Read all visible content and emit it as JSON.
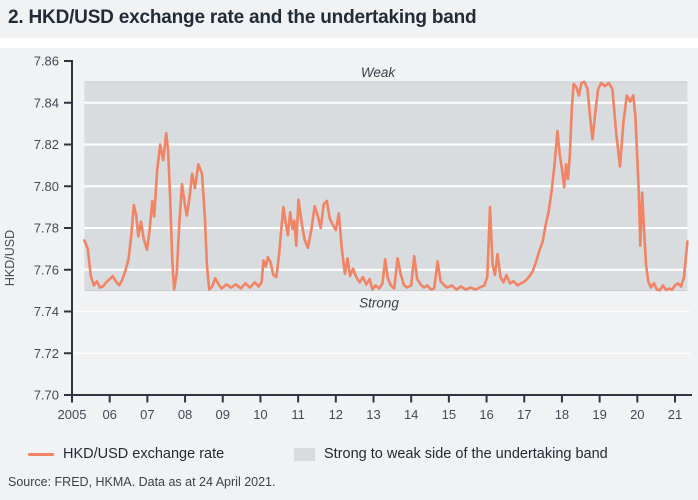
{
  "title": "2. HKD/USD exchange rate and the undertaking band",
  "source": "Source: FRED, HKMA. Data as at 24 April 2021.",
  "legend": [
    {
      "label": "HKD/USD exchange rate",
      "swatch": "line"
    },
    {
      "label": "Strong to weak side of the undertaking band",
      "swatch": "band"
    }
  ],
  "colors": {
    "line": "#f08465",
    "band": "#d8dcde",
    "band_edge": "#c9ced3",
    "grid": "#ffffff",
    "axis": "#2b3642",
    "tick_label": "#414c58",
    "annotation": "#39434e",
    "background": "#f0f2f3",
    "divider": "#ffffff"
  },
  "chart_data": {
    "type": "line",
    "title": "2. HKD/USD exchange rate and the undertaking band",
    "xlabel": "",
    "ylabel": "HKD/USD",
    "ylim": [
      7.7,
      7.86
    ],
    "xlim": [
      2005,
      2021
    ],
    "grid": "white gridlines inside band and below band",
    "legend_position": "bottom",
    "y_ticks": [
      "7.70",
      "7.72",
      "7.74",
      "7.76",
      "7.78",
      "7.80",
      "7.82",
      "7.84",
      "7.86"
    ],
    "x_ticks": [
      {
        "year": 2005,
        "label": "2005"
      },
      {
        "year": 2006,
        "label": "06"
      },
      {
        "year": 2007,
        "label": "07"
      },
      {
        "year": 2008,
        "label": "08"
      },
      {
        "year": 2009,
        "label": "09"
      },
      {
        "year": 2010,
        "label": "10"
      },
      {
        "year": 2011,
        "label": "11"
      },
      {
        "year": 2012,
        "label": "12"
      },
      {
        "year": 2013,
        "label": "13"
      },
      {
        "year": 2014,
        "label": "14"
      },
      {
        "year": 2015,
        "label": "15"
      },
      {
        "year": 2016,
        "label": "16"
      },
      {
        "year": 2017,
        "label": "17"
      },
      {
        "year": 2018,
        "label": "18"
      },
      {
        "year": 2019,
        "label": "19"
      },
      {
        "year": 2020,
        "label": "20"
      },
      {
        "year": 2021,
        "label": "21"
      }
    ],
    "band": {
      "from": 7.75,
      "to": 7.85,
      "label_top": "Weak",
      "label_bottom": "Strong",
      "legend": "Strong to weak side of the undertaking band"
    },
    "series": [
      {
        "name": "HKD/USD exchange rate",
        "points": [
          [
            2005.33,
            7.774
          ],
          [
            2005.42,
            7.77
          ],
          [
            2005.5,
            7.757
          ],
          [
            2005.58,
            7.7525
          ],
          [
            2005.66,
            7.7545
          ],
          [
            2005.74,
            7.7515
          ],
          [
            2005.82,
            7.752
          ],
          [
            2005.91,
            7.754
          ],
          [
            2006.0,
            7.7555
          ],
          [
            2006.08,
            7.757
          ],
          [
            2006.16,
            7.7545
          ],
          [
            2006.25,
            7.7525
          ],
          [
            2006.33,
            7.755
          ],
          [
            2006.41,
            7.759
          ],
          [
            2006.5,
            7.765
          ],
          [
            2006.57,
            7.776
          ],
          [
            2006.64,
            7.791
          ],
          [
            2006.7,
            7.7865
          ],
          [
            2006.76,
            7.776
          ],
          [
            2006.83,
            7.783
          ],
          [
            2006.9,
            7.775
          ],
          [
            2006.99,
            7.7695
          ],
          [
            2007.06,
            7.779
          ],
          [
            2007.13,
            7.793
          ],
          [
            2007.18,
            7.7855
          ],
          [
            2007.26,
            7.808
          ],
          [
            2007.34,
            7.82
          ],
          [
            2007.42,
            7.8125
          ],
          [
            2007.5,
            7.8255
          ],
          [
            2007.55,
            7.817
          ],
          [
            2007.6,
            7.796
          ],
          [
            2007.66,
            7.7655
          ],
          [
            2007.71,
            7.7505
          ],
          [
            2007.78,
            7.7585
          ],
          [
            2007.85,
            7.783
          ],
          [
            2007.92,
            7.801
          ],
          [
            2008.0,
            7.7905
          ],
          [
            2008.05,
            7.786
          ],
          [
            2008.12,
            7.795
          ],
          [
            2008.19,
            7.806
          ],
          [
            2008.26,
            7.799
          ],
          [
            2008.35,
            7.8105
          ],
          [
            2008.45,
            7.806
          ],
          [
            2008.53,
            7.784
          ],
          [
            2008.58,
            7.7625
          ],
          [
            2008.64,
            7.7505
          ],
          [
            2008.72,
            7.752
          ],
          [
            2008.8,
            7.756
          ],
          [
            2008.89,
            7.753
          ],
          [
            2008.97,
            7.751
          ],
          [
            2009.1,
            7.753
          ],
          [
            2009.22,
            7.7515
          ],
          [
            2009.35,
            7.753
          ],
          [
            2009.48,
            7.751
          ],
          [
            2009.6,
            7.7535
          ],
          [
            2009.72,
            7.7515
          ],
          [
            2009.85,
            7.754
          ],
          [
            2009.95,
            7.752
          ],
          [
            2010.03,
            7.754
          ],
          [
            2010.08,
            7.7645
          ],
          [
            2010.14,
            7.7615
          ],
          [
            2010.2,
            7.766
          ],
          [
            2010.27,
            7.7635
          ],
          [
            2010.34,
            7.7575
          ],
          [
            2010.42,
            7.7565
          ],
          [
            2010.49,
            7.7665
          ],
          [
            2010.55,
            7.779
          ],
          [
            2010.61,
            7.79
          ],
          [
            2010.67,
            7.7825
          ],
          [
            2010.73,
            7.7765
          ],
          [
            2010.79,
            7.7875
          ],
          [
            2010.85,
            7.7795
          ],
          [
            2010.9,
            7.7835
          ],
          [
            2010.95,
            7.7715
          ],
          [
            2011.01,
            7.7935
          ],
          [
            2011.09,
            7.783
          ],
          [
            2011.17,
            7.7745
          ],
          [
            2011.26,
            7.7705
          ],
          [
            2011.35,
            7.779
          ],
          [
            2011.44,
            7.7905
          ],
          [
            2011.52,
            7.786
          ],
          [
            2011.6,
            7.78
          ],
          [
            2011.68,
            7.7915
          ],
          [
            2011.76,
            7.793
          ],
          [
            2011.84,
            7.7845
          ],
          [
            2011.92,
            7.7815
          ],
          [
            2012.0,
            7.779
          ],
          [
            2012.08,
            7.787
          ],
          [
            2012.16,
            7.77
          ],
          [
            2012.24,
            7.758
          ],
          [
            2012.31,
            7.7655
          ],
          [
            2012.38,
            7.757
          ],
          [
            2012.46,
            7.7605
          ],
          [
            2012.54,
            7.7565
          ],
          [
            2012.63,
            7.754
          ],
          [
            2012.72,
            7.7565
          ],
          [
            2012.81,
            7.753
          ],
          [
            2012.9,
            7.7555
          ],
          [
            2012.97,
            7.7505
          ],
          [
            2013.05,
            7.7525
          ],
          [
            2013.15,
            7.751
          ],
          [
            2013.24,
            7.7535
          ],
          [
            2013.31,
            7.765
          ],
          [
            2013.38,
            7.756
          ],
          [
            2013.46,
            7.7525
          ],
          [
            2013.55,
            7.751
          ],
          [
            2013.64,
            7.7655
          ],
          [
            2013.72,
            7.758
          ],
          [
            2013.81,
            7.7525
          ],
          [
            2013.9,
            7.7515
          ],
          [
            2014.0,
            7.7525
          ],
          [
            2014.08,
            7.7665
          ],
          [
            2014.16,
            7.7555
          ],
          [
            2014.25,
            7.753
          ],
          [
            2014.34,
            7.7515
          ],
          [
            2014.43,
            7.7525
          ],
          [
            2014.52,
            7.7505
          ],
          [
            2014.61,
            7.751
          ],
          [
            2014.7,
            7.764
          ],
          [
            2014.78,
            7.7545
          ],
          [
            2014.88,
            7.7525
          ],
          [
            2014.96,
            7.7515
          ],
          [
            2015.08,
            7.7525
          ],
          [
            2015.2,
            7.7505
          ],
          [
            2015.32,
            7.752
          ],
          [
            2015.45,
            7.7505
          ],
          [
            2015.58,
            7.7515
          ],
          [
            2015.7,
            7.7505
          ],
          [
            2015.82,
            7.7515
          ],
          [
            2015.94,
            7.7525
          ],
          [
            2016.02,
            7.7565
          ],
          [
            2016.09,
            7.79
          ],
          [
            2016.16,
            7.7625
          ],
          [
            2016.22,
            7.7575
          ],
          [
            2016.29,
            7.7675
          ],
          [
            2016.37,
            7.7565
          ],
          [
            2016.45,
            7.754
          ],
          [
            2016.53,
            7.7575
          ],
          [
            2016.62,
            7.7535
          ],
          [
            2016.72,
            7.7545
          ],
          [
            2016.82,
            7.7525
          ],
          [
            2016.92,
            7.7535
          ],
          [
            2017.02,
            7.7545
          ],
          [
            2017.12,
            7.7565
          ],
          [
            2017.22,
            7.759
          ],
          [
            2017.31,
            7.7635
          ],
          [
            2017.4,
            7.769
          ],
          [
            2017.49,
            7.7735
          ],
          [
            2017.57,
            7.7815
          ],
          [
            2017.65,
            7.788
          ],
          [
            2017.72,
            7.797
          ],
          [
            2017.8,
            7.8095
          ],
          [
            2017.88,
            7.8265
          ],
          [
            2017.94,
            7.8155
          ],
          [
            2018.0,
            7.8085
          ],
          [
            2018.06,
            7.7995
          ],
          [
            2018.11,
            7.8105
          ],
          [
            2018.16,
            7.8035
          ],
          [
            2018.21,
            7.8155
          ],
          [
            2018.26,
            7.8365
          ],
          [
            2018.31,
            7.849
          ],
          [
            2018.38,
            7.8475
          ],
          [
            2018.45,
            7.8435
          ],
          [
            2018.52,
            7.8495
          ],
          [
            2018.6,
            7.85
          ],
          [
            2018.68,
            7.8465
          ],
          [
            2018.75,
            7.8325
          ],
          [
            2018.81,
            7.8225
          ],
          [
            2018.88,
            7.8345
          ],
          [
            2018.96,
            7.8465
          ],
          [
            2019.04,
            7.8495
          ],
          [
            2019.14,
            7.848
          ],
          [
            2019.24,
            7.8495
          ],
          [
            2019.34,
            7.8465
          ],
          [
            2019.44,
            7.8255
          ],
          [
            2019.54,
            7.8095
          ],
          [
            2019.63,
            7.8305
          ],
          [
            2019.72,
            7.8435
          ],
          [
            2019.81,
            7.8405
          ],
          [
            2019.89,
            7.8435
          ],
          [
            2019.95,
            7.8335
          ],
          [
            2020.0,
            7.8135
          ],
          [
            2020.04,
            7.797
          ],
          [
            2020.08,
            7.7715
          ],
          [
            2020.13,
            7.797
          ],
          [
            2020.18,
            7.7785
          ],
          [
            2020.23,
            7.7625
          ],
          [
            2020.29,
            7.7545
          ],
          [
            2020.36,
            7.7515
          ],
          [
            2020.44,
            7.7535
          ],
          [
            2020.52,
            7.7505
          ],
          [
            2020.6,
            7.7502
          ],
          [
            2020.68,
            7.7525
          ],
          [
            2020.76,
            7.7503
          ],
          [
            2020.84,
            7.751
          ],
          [
            2020.92,
            7.7504
          ],
          [
            2021.0,
            7.7525
          ],
          [
            2021.08,
            7.7535
          ],
          [
            2021.16,
            7.752
          ],
          [
            2021.24,
            7.7565
          ],
          [
            2021.33,
            7.7735
          ]
        ]
      }
    ]
  }
}
